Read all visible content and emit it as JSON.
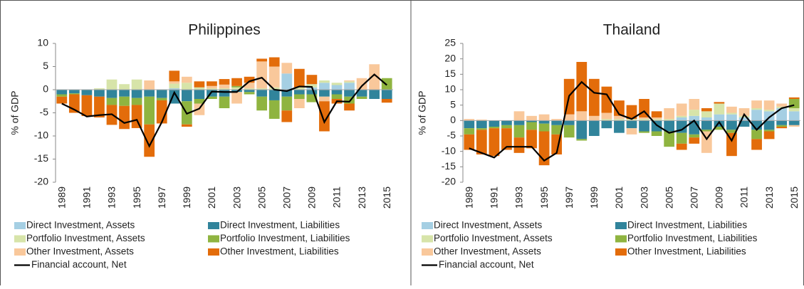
{
  "chart_data": [
    {
      "type": "bar",
      "title": "Philippines",
      "ylabel": "% of GDP",
      "categories": [
        "1989",
        null,
        "1991",
        null,
        "1993",
        null,
        "1995",
        null,
        "1997",
        null,
        "1999",
        null,
        "2001",
        null,
        "2003",
        null,
        "2005",
        null,
        "2007",
        null,
        "2009",
        null,
        "2011",
        null,
        "2013",
        null,
        "2015"
      ],
      "ylim": [
        -20,
        10
      ],
      "yticks": [
        -20,
        -15,
        -10,
        -5,
        0,
        5,
        10
      ],
      "series": [
        {
          "name": "Direct Investment, Assets",
          "color": "#a5cfe3",
          "values": [
            0,
            0,
            0,
            0,
            0,
            0,
            0,
            0,
            0,
            0.3,
            0,
            0,
            0,
            0,
            0,
            0,
            0,
            0,
            3.5,
            0,
            0.5,
            1.5,
            1,
            1.5,
            0,
            0,
            0
          ]
        },
        {
          "name": "Direct Investment, Liabilities",
          "color": "#31849b",
          "values": [
            -1,
            -0.8,
            -1.2,
            -1.5,
            -1.8,
            -1.5,
            -1.8,
            -1.5,
            -1.8,
            -3,
            -2.5,
            -2,
            -1.5,
            -1.5,
            -0.5,
            -0.5,
            -1.5,
            -2.3,
            -1.5,
            -1,
            -1,
            -1.5,
            -1,
            -1.5,
            -1.5,
            -2,
            -2
          ]
        },
        {
          "name": "Portfolio Investment, Assets",
          "color": "#d7e4a9",
          "values": [
            0,
            0,
            0,
            0.3,
            2.2,
            1.2,
            2.2,
            0,
            0,
            1,
            1.5,
            0.5,
            0.3,
            0.3,
            0.5,
            0.3,
            0.3,
            0.5,
            0,
            0.5,
            0.7,
            0.5,
            0.5,
            0.3,
            0,
            0,
            0
          ]
        },
        {
          "name": "Portfolio Investment, Liabilities",
          "color": "#8fb440",
          "values": [
            -0.5,
            -0.2,
            0,
            0,
            -1.5,
            -2,
            -1.5,
            -6,
            -0.5,
            0,
            -5,
            -1,
            -0.5,
            -2.5,
            0.3,
            -0.5,
            -3,
            -4,
            -3,
            -1,
            -1.7,
            0,
            -1,
            -1.5,
            -0.5,
            0,
            2.5
          ]
        },
        {
          "name": "Other Investment, Assets",
          "color": "#f9c89b",
          "values": [
            0,
            0,
            0,
            0,
            0,
            0,
            0,
            2,
            0,
            0.5,
            1.3,
            -2.5,
            0.5,
            0.8,
            -2.5,
            1.2,
            5.8,
            4.5,
            2.3,
            -2,
            0,
            -1,
            0,
            0.2,
            2.5,
            5.5,
            0
          ]
        },
        {
          "name": "Other Investment, Liabilities",
          "color": "#e36c0a",
          "values": [
            -1.5,
            -4,
            -4.5,
            -4.5,
            -4.3,
            -5,
            -5,
            -7,
            -5,
            2.3,
            -0.5,
            1.3,
            1,
            1.2,
            1.7,
            1.3,
            0.6,
            2,
            -2.5,
            4,
            2,
            -6.5,
            -1,
            -1.5,
            0,
            0,
            -0.8
          ]
        },
        {
          "name": "Financial account, Net",
          "color": "#000000",
          "style": "line",
          "values": [
            -3,
            -4.3,
            -5.8,
            -5.5,
            -5.3,
            -7.2,
            -6.5,
            -12.2,
            -7,
            -0.6,
            -5.2,
            -4.1,
            -0.4,
            -0.5,
            -0.5,
            1.8,
            2.6,
            0,
            -0.3,
            0.7,
            0.6,
            -7,
            -2.5,
            -2.6,
            0.8,
            3.3,
            1
          ]
        }
      ]
    },
    {
      "type": "bar",
      "title": "Thailand",
      "ylabel": "% of GDP",
      "categories": [
        "1989",
        null,
        "1991",
        null,
        "1993",
        null,
        "1995",
        null,
        "1997",
        null,
        "1999",
        null,
        "2001",
        null,
        "2003",
        null,
        "2005",
        null,
        "2007",
        null,
        "2009",
        null,
        "2011",
        null,
        "2013",
        null,
        "2015"
      ],
      "ylim": [
        -20,
        25
      ],
      "yticks": [
        -20,
        -15,
        -10,
        -5,
        0,
        5,
        10,
        15,
        20,
        25
      ],
      "series": [
        {
          "name": "Direct Investment, Assets",
          "color": "#a5cfe3",
          "values": [
            0,
            0,
            0,
            0,
            0,
            0,
            0,
            0,
            0,
            0,
            0,
            0,
            0,
            0,
            0,
            0,
            0,
            1,
            1.5,
            1,
            2,
            2,
            1,
            3.5,
            3,
            4,
            3
          ]
        },
        {
          "name": "Direct Investment, Liabilities",
          "color": "#31849b",
          "values": [
            -2.5,
            -2.5,
            -2,
            -1.5,
            -1.5,
            -0.5,
            -1,
            -1.5,
            -1.5,
            -6,
            -5,
            -2.5,
            -4,
            -2.5,
            -3.5,
            -3.5,
            -3.5,
            -4,
            -4.5,
            -3,
            -2,
            -3,
            -2,
            -3,
            -3,
            -1.5,
            -1.5
          ]
        },
        {
          "name": "Portfolio Investment, Assets",
          "color": "#d7e4a9",
          "values": [
            0,
            0,
            0,
            0,
            0,
            0,
            0,
            0,
            0,
            0,
            0,
            0.5,
            0.5,
            0.5,
            0.5,
            0.5,
            0.5,
            0.5,
            2,
            2,
            3.5,
            0.5,
            0.5,
            0.5,
            0.5,
            0.5,
            1
          ]
        },
        {
          "name": "Portfolio Investment, Liabilities",
          "color": "#8fb440",
          "values": [
            -2,
            -0.5,
            -0.5,
            -1,
            -4,
            -2.5,
            -2.5,
            -3,
            -4,
            -0.5,
            0,
            0,
            0,
            0,
            -0.5,
            -1.5,
            -5,
            -3.5,
            -1,
            -0.5,
            -1,
            -1,
            0,
            -3,
            -0.5,
            -0.5,
            3
          ]
        },
        {
          "name": "Other Investment, Assets",
          "color": "#f9c89b",
          "values": [
            0.5,
            0.3,
            0,
            0,
            3,
            1.5,
            2,
            0.5,
            2,
            3,
            1.5,
            2,
            1,
            -2,
            0.5,
            0.5,
            3.5,
            4,
            3.5,
            -7,
            0,
            2,
            2.5,
            2.5,
            3,
            1,
            -0.5
          ]
        },
        {
          "name": "Other Investment, Liabilities",
          "color": "#e36c0a",
          "values": [
            -5,
            -8,
            -9,
            -7,
            -5,
            -6,
            -11,
            -6.5,
            11.5,
            16,
            12,
            8.5,
            5,
            4.5,
            6,
            2,
            0,
            -2,
            -2,
            1,
            0.5,
            -7.5,
            0,
            -3.5,
            -2.5,
            -0.5,
            0.5
          ]
        },
        {
          "name": "Financial account, Net",
          "color": "#000000",
          "style": "line",
          "values": [
            -9,
            -10.5,
            -12,
            -8.5,
            -8.5,
            -8.5,
            -13,
            -10.5,
            8,
            12.5,
            9,
            8.5,
            2,
            0.5,
            3,
            -1.5,
            -4,
            -3,
            0,
            -6,
            -0.5,
            -6.5,
            2,
            -3,
            1,
            4,
            5
          ]
        }
      ]
    }
  ]
}
